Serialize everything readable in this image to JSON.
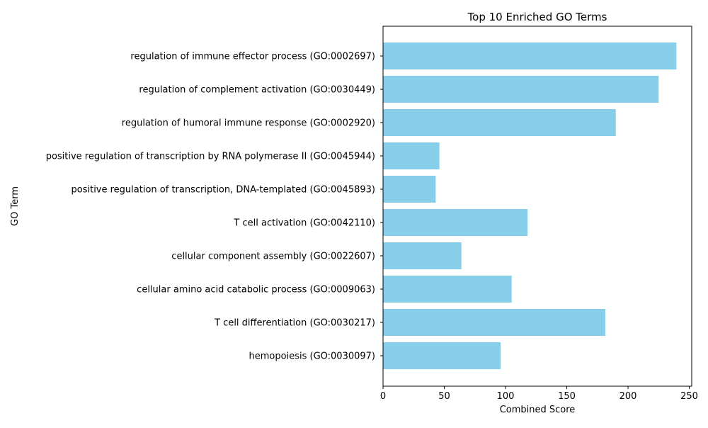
{
  "chart_data": {
    "type": "bar",
    "orientation": "horizontal",
    "title": "Top 10 Enriched GO Terms",
    "xlabel": "Combined Score",
    "ylabel": "GO Term",
    "xlim": [
      0,
      252
    ],
    "xticks": [
      0,
      50,
      100,
      150,
      200,
      250
    ],
    "grid": false,
    "bar_color": "#87CEEB",
    "categories": [
      "regulation of immune effector process (GO:0002697)",
      "regulation of complement activation (GO:0030449)",
      "regulation of humoral immune response (GO:0002920)",
      "positive regulation of transcription by RNA polymerase II (GO:0045944)",
      "positive regulation of transcription, DNA-templated (GO:0045893)",
      "T cell activation (GO:0042110)",
      "cellular component assembly (GO:0022607)",
      "cellular amino acid catabolic process (GO:0009063)",
      "T cell differentiation (GO:0030217)",
      "hemopoiesis (GO:0030097)"
    ],
    "values": [
      239.5,
      225,
      190,
      46,
      43,
      118,
      64,
      105,
      181.5,
      96
    ]
  }
}
